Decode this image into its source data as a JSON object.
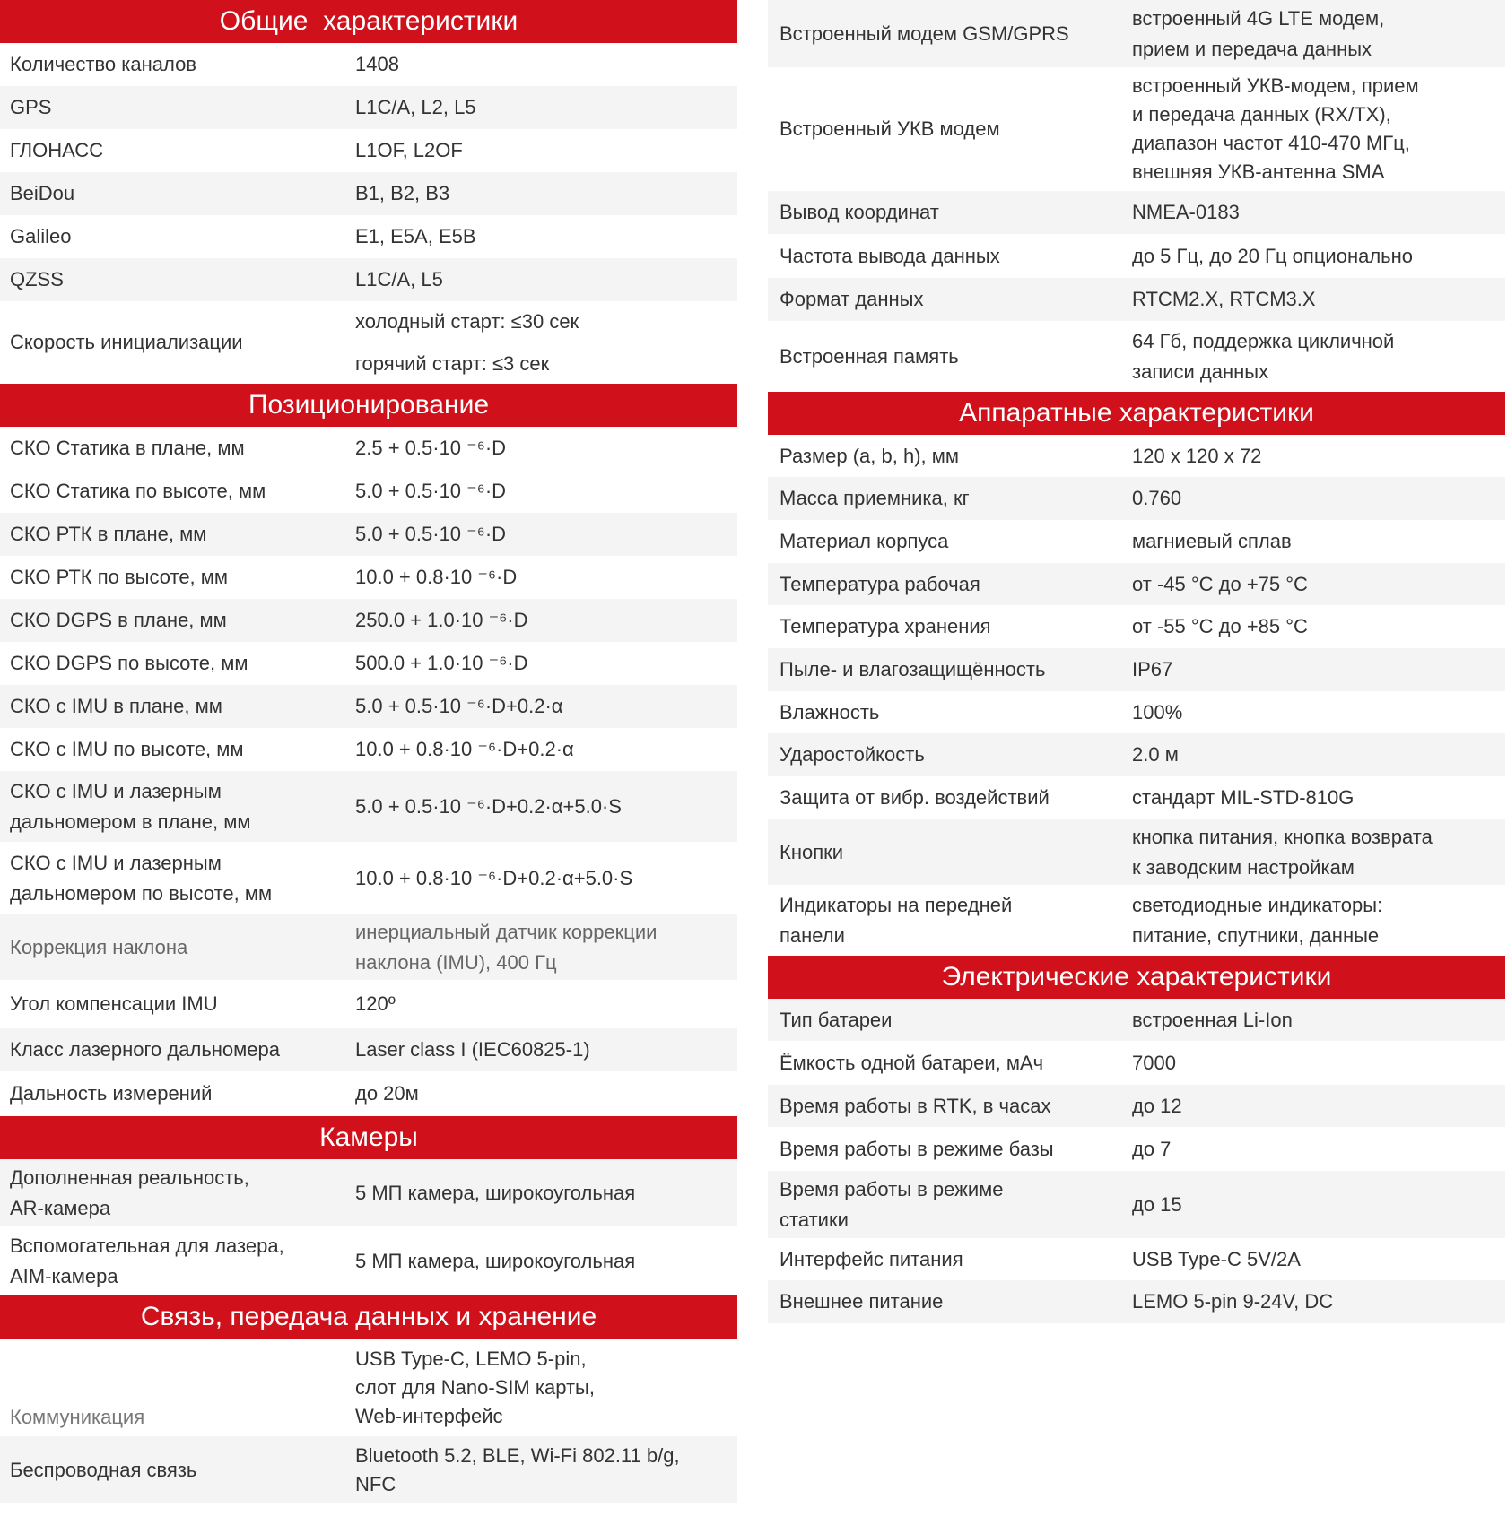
{
  "theme": {
    "header_bg": "#d0111b",
    "stripe_bg": "#f4f4f4",
    "text": "#333333"
  },
  "left": [
    {
      "header": "Общие  характеристики"
    },
    {
      "label": "Количество каналов",
      "value": "1408"
    },
    {
      "label": "GPS",
      "value": "L1C/A, L2, L5"
    },
    {
      "label": "ГЛОНАСС",
      "value": "L1OF, L2OF"
    },
    {
      "label": "BeiDou",
      "value": "B1, B2, B3"
    },
    {
      "label": "Galileo",
      "value": "E1, E5A, E5B"
    },
    {
      "label": "QZSS",
      "value": "L1C/A, L5"
    },
    {
      "label": "Скорость инициализации",
      "value": "холодный старт: ≤30 сек\nгорячий старт: ≤3 сек"
    },
    {
      "header": "Позиционирование"
    },
    {
      "label": "СКО Статика в плане, мм",
      "value": "2.5 + 0.5·10 ⁻⁶·D"
    },
    {
      "label": "СКО Статика по высоте, мм",
      "value": "5.0 + 0.5·10 ⁻⁶·D"
    },
    {
      "label": "СКО РТК в плане, мм",
      "value": "5.0 + 0.5·10 ⁻⁶·D"
    },
    {
      "label": "СКО РТК по высоте, мм",
      "value": "10.0 + 0.8·10 ⁻⁶·D"
    },
    {
      "label": "СКО DGPS в плане, мм",
      "value": "250.0 + 1.0·10 ⁻⁶·D"
    },
    {
      "label": "СКО DGPS по высоте, мм",
      "value": "500.0 + 1.0·10 ⁻⁶·D"
    },
    {
      "label": "СКО с IMU в плане, мм",
      "value": "5.0 + 0.5·10 ⁻⁶·D+0.2·α"
    },
    {
      "label": "СКО с IMU  по высоте, мм",
      "value": "10.0 + 0.8·10 ⁻⁶·D+0.2·α"
    },
    {
      "label": "СКО с IMU  и лазерным\nдальномером в плане, мм",
      "value": "5.0 + 0.5·10 ⁻⁶·D+0.2·α+5.0·S"
    },
    {
      "label": "СКО с IMU  и лазерным\nдальномером по высоте, мм",
      "value": "10.0 + 0.8·10 ⁻⁶·D+0.2·α+5.0·S"
    },
    {
      "label": "Коррекция наклона",
      "value": "инерциальный датчик коррекции\nнаклона (IMU), 400 Гц"
    },
    {
      "label": "Угол компенсации IMU",
      "value": "120º"
    },
    {
      "label": "Класс лазерного дальномера",
      "value": "Laser class I (IEC60825-1)"
    },
    {
      "label": "Дальность измерений",
      "value": "до 20м"
    },
    {
      "header": "Камеры"
    },
    {
      "label": "Дополненная реальность,\nAR-камера",
      "value": "5 МП камера, широкоугольная"
    },
    {
      "label": "Вспомогательная для лазера,\nAIM-камера",
      "value": "5 МП камера, широкоугольная"
    },
    {
      "header": "Связь, передача данных и хранение"
    },
    {
      "label": "",
      "value": "USB Type-C, LEMO 5-pin,\nслот для Nano-SIM карты,\nWeb-интерфейс"
    },
    {
      "label": "Беспроводная связь",
      "overlap_label": "Коммуникация",
      "value": "Bluetooth 5.2, BLE, Wi-Fi 802.11 b/g,\nNFC"
    }
  ],
  "right": [
    {
      "label": "Встроенный модем GSM/GPRS",
      "value": "встроенный 4G LTE модем,\nприем и передача данных"
    },
    {
      "label": "Встроенный УКВ модем",
      "value": "встроенный УКВ-модем, прием\nи передача данных (RX/TX),\nдиапазон частот 410-470 МГц,\nвнешняя УКВ-антенна SMA"
    },
    {
      "label": "Вывод координат",
      "value": "NMEA-0183"
    },
    {
      "label": "Частота вывода данных",
      "value": "до 5 Гц, до 20 Гц опционально"
    },
    {
      "label": "Формат данных",
      "value": "RTCM2.X, RTCM3.X"
    },
    {
      "label": "Встроенная память",
      "value": "64 Гб, поддержка цикличной\nзаписи данных"
    },
    {
      "header": "Аппаратные характеристики"
    },
    {
      "label": "Размер (a, b, h), мм",
      "value": "120 x 120 x 72"
    },
    {
      "label": "Масса приемника, кг",
      "value": "0.760"
    },
    {
      "label": "Материал корпуса",
      "value": "магниевый сплав"
    },
    {
      "label": "Температура рабочая",
      "value": "от -45 °С до +75 °С"
    },
    {
      "label": "Температура хранения",
      "value": "от -55 °С до +85 °С"
    },
    {
      "label": "Пыле- и влагозащищённость",
      "value": "IP67"
    },
    {
      "label": "Влажность",
      "value": "100%"
    },
    {
      "label": "Ударостойкость",
      "value": "2.0 м"
    },
    {
      "label": "Защита от вибр. воздействий",
      "value": "стандарт MIL-STD-810G"
    },
    {
      "label": "Кнопки",
      "value": "кнопка питания, кнопка возврата\nк заводским настройкам"
    },
    {
      "label": "Индикаторы на передней\nпанели",
      "value": "светодиодные индикаторы:\nпитание, спутники, данные"
    },
    {
      "header": "Электрические характеристики"
    },
    {
      "label": "Тип батареи",
      "value": "встроенная Li-Ion"
    },
    {
      "label": "Ёмкость одной батареи, мАч",
      "value": "7000"
    },
    {
      "label": "Время работы в RTK, в часах",
      "value": "до 12"
    },
    {
      "label": "Время работы в режиме базы",
      "value": "до 7"
    },
    {
      "label": "Время работы в режиме\nстатики",
      "value": "до 15"
    },
    {
      "label": "Интерфейс питания",
      "value": "USB Type-C 5V/2A"
    },
    {
      "label": "Внешнее питание",
      "value": "LEMO 5-pin 9-24V, DC"
    }
  ]
}
